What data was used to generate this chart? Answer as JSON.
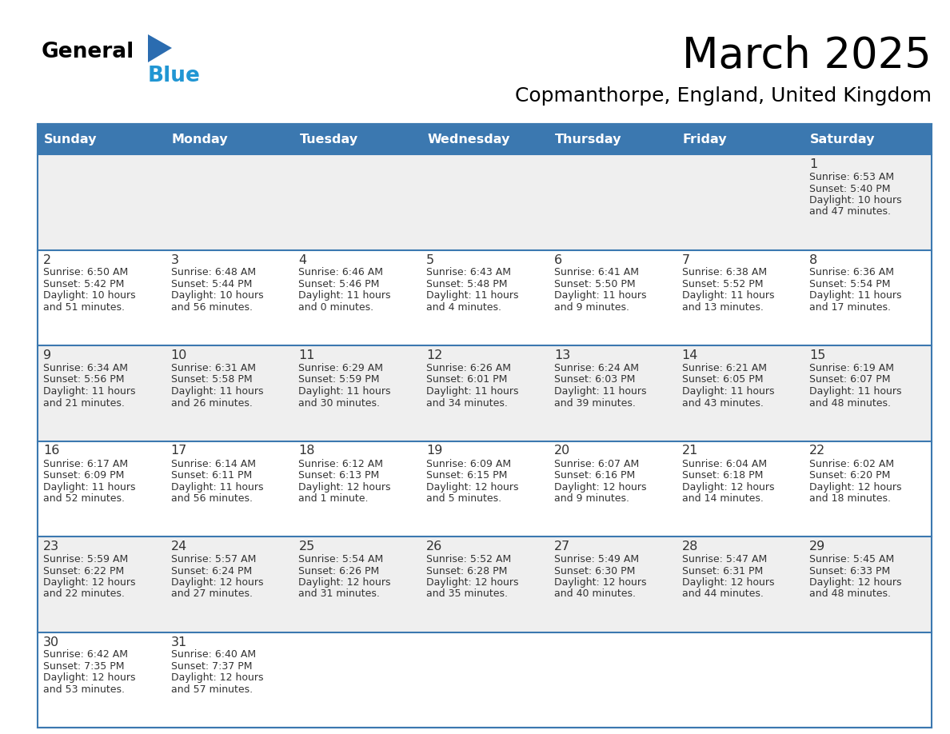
{
  "title": "March 2025",
  "subtitle": "Copmanthorpe, England, United Kingdom",
  "header_bg": "#3b78b0",
  "header_text_color": "#ffffff",
  "cell_bg_odd": "#efefef",
  "cell_bg_even": "#ffffff",
  "grid_color": "#3b78b0",
  "text_color": "#333333",
  "day_headers": [
    "Sunday",
    "Monday",
    "Tuesday",
    "Wednesday",
    "Thursday",
    "Friday",
    "Saturday"
  ],
  "days": [
    {
      "day": 1,
      "col": 6,
      "row": 0,
      "sunrise": "6:53 AM",
      "sunset": "5:40 PM",
      "daylight_a": "Daylight: 10 hours",
      "daylight_b": "and 47 minutes."
    },
    {
      "day": 2,
      "col": 0,
      "row": 1,
      "sunrise": "6:50 AM",
      "sunset": "5:42 PM",
      "daylight_a": "Daylight: 10 hours",
      "daylight_b": "and 51 minutes."
    },
    {
      "day": 3,
      "col": 1,
      "row": 1,
      "sunrise": "6:48 AM",
      "sunset": "5:44 PM",
      "daylight_a": "Daylight: 10 hours",
      "daylight_b": "and 56 minutes."
    },
    {
      "day": 4,
      "col": 2,
      "row": 1,
      "sunrise": "6:46 AM",
      "sunset": "5:46 PM",
      "daylight_a": "Daylight: 11 hours",
      "daylight_b": "and 0 minutes."
    },
    {
      "day": 5,
      "col": 3,
      "row": 1,
      "sunrise": "6:43 AM",
      "sunset": "5:48 PM",
      "daylight_a": "Daylight: 11 hours",
      "daylight_b": "and 4 minutes."
    },
    {
      "day": 6,
      "col": 4,
      "row": 1,
      "sunrise": "6:41 AM",
      "sunset": "5:50 PM",
      "daylight_a": "Daylight: 11 hours",
      "daylight_b": "and 9 minutes."
    },
    {
      "day": 7,
      "col": 5,
      "row": 1,
      "sunrise": "6:38 AM",
      "sunset": "5:52 PM",
      "daylight_a": "Daylight: 11 hours",
      "daylight_b": "and 13 minutes."
    },
    {
      "day": 8,
      "col": 6,
      "row": 1,
      "sunrise": "6:36 AM",
      "sunset": "5:54 PM",
      "daylight_a": "Daylight: 11 hours",
      "daylight_b": "and 17 minutes."
    },
    {
      "day": 9,
      "col": 0,
      "row": 2,
      "sunrise": "6:34 AM",
      "sunset": "5:56 PM",
      "daylight_a": "Daylight: 11 hours",
      "daylight_b": "and 21 minutes."
    },
    {
      "day": 10,
      "col": 1,
      "row": 2,
      "sunrise": "6:31 AM",
      "sunset": "5:58 PM",
      "daylight_a": "Daylight: 11 hours",
      "daylight_b": "and 26 minutes."
    },
    {
      "day": 11,
      "col": 2,
      "row": 2,
      "sunrise": "6:29 AM",
      "sunset": "5:59 PM",
      "daylight_a": "Daylight: 11 hours",
      "daylight_b": "and 30 minutes."
    },
    {
      "day": 12,
      "col": 3,
      "row": 2,
      "sunrise": "6:26 AM",
      "sunset": "6:01 PM",
      "daylight_a": "Daylight: 11 hours",
      "daylight_b": "and 34 minutes."
    },
    {
      "day": 13,
      "col": 4,
      "row": 2,
      "sunrise": "6:24 AM",
      "sunset": "6:03 PM",
      "daylight_a": "Daylight: 11 hours",
      "daylight_b": "and 39 minutes."
    },
    {
      "day": 14,
      "col": 5,
      "row": 2,
      "sunrise": "6:21 AM",
      "sunset": "6:05 PM",
      "daylight_a": "Daylight: 11 hours",
      "daylight_b": "and 43 minutes."
    },
    {
      "day": 15,
      "col": 6,
      "row": 2,
      "sunrise": "6:19 AM",
      "sunset": "6:07 PM",
      "daylight_a": "Daylight: 11 hours",
      "daylight_b": "and 48 minutes."
    },
    {
      "day": 16,
      "col": 0,
      "row": 3,
      "sunrise": "6:17 AM",
      "sunset": "6:09 PM",
      "daylight_a": "Daylight: 11 hours",
      "daylight_b": "and 52 minutes."
    },
    {
      "day": 17,
      "col": 1,
      "row": 3,
      "sunrise": "6:14 AM",
      "sunset": "6:11 PM",
      "daylight_a": "Daylight: 11 hours",
      "daylight_b": "and 56 minutes."
    },
    {
      "day": 18,
      "col": 2,
      "row": 3,
      "sunrise": "6:12 AM",
      "sunset": "6:13 PM",
      "daylight_a": "Daylight: 12 hours",
      "daylight_b": "and 1 minute."
    },
    {
      "day": 19,
      "col": 3,
      "row": 3,
      "sunrise": "6:09 AM",
      "sunset": "6:15 PM",
      "daylight_a": "Daylight: 12 hours",
      "daylight_b": "and 5 minutes."
    },
    {
      "day": 20,
      "col": 4,
      "row": 3,
      "sunrise": "6:07 AM",
      "sunset": "6:16 PM",
      "daylight_a": "Daylight: 12 hours",
      "daylight_b": "and 9 minutes."
    },
    {
      "day": 21,
      "col": 5,
      "row": 3,
      "sunrise": "6:04 AM",
      "sunset": "6:18 PM",
      "daylight_a": "Daylight: 12 hours",
      "daylight_b": "and 14 minutes."
    },
    {
      "day": 22,
      "col": 6,
      "row": 3,
      "sunrise": "6:02 AM",
      "sunset": "6:20 PM",
      "daylight_a": "Daylight: 12 hours",
      "daylight_b": "and 18 minutes."
    },
    {
      "day": 23,
      "col": 0,
      "row": 4,
      "sunrise": "5:59 AM",
      "sunset": "6:22 PM",
      "daylight_a": "Daylight: 12 hours",
      "daylight_b": "and 22 minutes."
    },
    {
      "day": 24,
      "col": 1,
      "row": 4,
      "sunrise": "5:57 AM",
      "sunset": "6:24 PM",
      "daylight_a": "Daylight: 12 hours",
      "daylight_b": "and 27 minutes."
    },
    {
      "day": 25,
      "col": 2,
      "row": 4,
      "sunrise": "5:54 AM",
      "sunset": "6:26 PM",
      "daylight_a": "Daylight: 12 hours",
      "daylight_b": "and 31 minutes."
    },
    {
      "day": 26,
      "col": 3,
      "row": 4,
      "sunrise": "5:52 AM",
      "sunset": "6:28 PM",
      "daylight_a": "Daylight: 12 hours",
      "daylight_b": "and 35 minutes."
    },
    {
      "day": 27,
      "col": 4,
      "row": 4,
      "sunrise": "5:49 AM",
      "sunset": "6:30 PM",
      "daylight_a": "Daylight: 12 hours",
      "daylight_b": "and 40 minutes."
    },
    {
      "day": 28,
      "col": 5,
      "row": 4,
      "sunrise": "5:47 AM",
      "sunset": "6:31 PM",
      "daylight_a": "Daylight: 12 hours",
      "daylight_b": "and 44 minutes."
    },
    {
      "day": 29,
      "col": 6,
      "row": 4,
      "sunrise": "5:45 AM",
      "sunset": "6:33 PM",
      "daylight_a": "Daylight: 12 hours",
      "daylight_b": "and 48 minutes."
    },
    {
      "day": 30,
      "col": 0,
      "row": 5,
      "sunrise": "6:42 AM",
      "sunset": "7:35 PM",
      "daylight_a": "Daylight: 12 hours",
      "daylight_b": "and 53 minutes."
    },
    {
      "day": 31,
      "col": 1,
      "row": 5,
      "sunrise": "6:40 AM",
      "sunset": "7:37 PM",
      "daylight_a": "Daylight: 12 hours",
      "daylight_b": "and 57 minutes."
    }
  ],
  "num_rows": 6,
  "logo_text_general": "General",
  "logo_text_blue": "Blue",
  "logo_triangle_color": "#2b6cb0",
  "logo_blue_color": "#2196d3"
}
